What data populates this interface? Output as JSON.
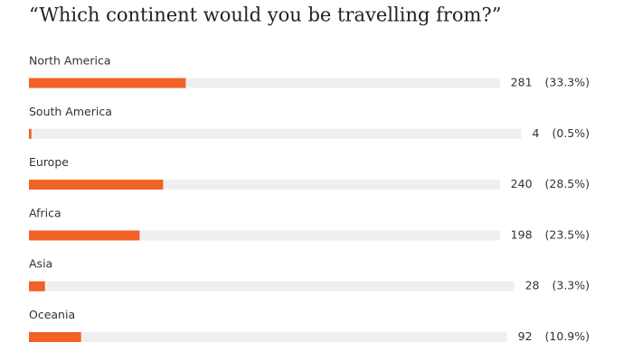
{
  "chart_data": {
    "type": "bar",
    "orientation": "horizontal",
    "title": "“Which continent would you be travelling from?”",
    "categories": [
      "North America",
      "South America",
      "Europe",
      "Africa",
      "Asia",
      "Oceania"
    ],
    "values": [
      281,
      4,
      240,
      198,
      28,
      92
    ],
    "percentages": [
      33.3,
      0.5,
      28.5,
      23.5,
      3.3,
      10.9
    ],
    "percentage_labels": [
      "(33.3%)",
      "(0.5%)",
      "(28.5%)",
      "(23.5%)",
      "(3.3%)",
      "(10.9%)"
    ],
    "color": "#f26125",
    "track_color": "#efefef"
  }
}
